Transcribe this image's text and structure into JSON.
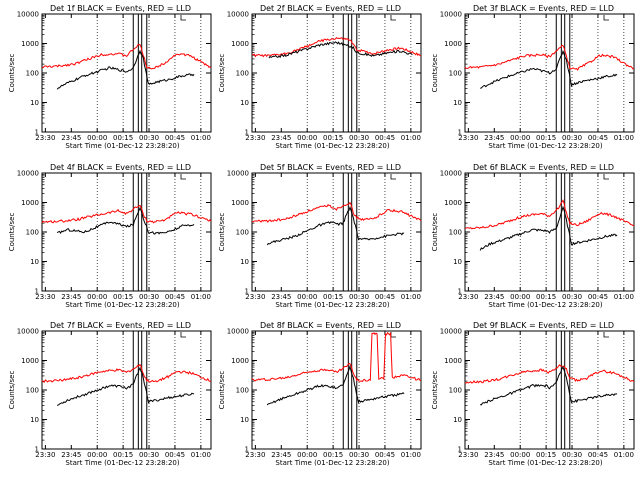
{
  "chart_data": [
    {
      "type": "line",
      "title": "Det 1f BLACK = Events, RED = LLD",
      "ylabel": "Counts/sec",
      "xlabel": "Start Time (01-Dec-12 23:28:20)",
      "x_ticks": [
        "23:30",
        "23:45",
        "00:00",
        "00:15",
        "00:30",
        "00:45",
        "01:00"
      ],
      "y_ticks": [
        "1",
        "10",
        "100",
        "1000",
        "10000"
      ],
      "y_scale": "log",
      "ylim": [
        1,
        10000
      ],
      "xlim": [
        0,
        100
      ],
      "grid": "dotted vertical lines at 00:00, 00:15, 00:30, 00:45, 01:00",
      "vlines": [
        54,
        57,
        59,
        62
      ],
      "series": [
        {
          "color": "#ff0000",
          "x": [
            0,
            10,
            20,
            35,
            45,
            50,
            56,
            58,
            60,
            62,
            66,
            72,
            80,
            88,
            95,
            100
          ],
          "y": [
            160,
            170,
            210,
            420,
            450,
            380,
            800,
            900,
            400,
            160,
            140,
            210,
            450,
            380,
            220,
            150
          ]
        },
        {
          "color": "#000000",
          "x": [
            9,
            15,
            25,
            40,
            48,
            50,
            54,
            56,
            58,
            60,
            63,
            68,
            75,
            83,
            90
          ],
          "y": [
            30,
            45,
            80,
            150,
            120,
            110,
            150,
            300,
            600,
            300,
            40,
            50,
            60,
            80,
            90
          ]
        }
      ]
    },
    {
      "type": "line",
      "title": "Det 2f BLACK = Events, RED = LLD",
      "ylabel": "Counts/sec",
      "xlabel": "Start Time (01-Dec-12 23:28:20)",
      "x_ticks": [
        "23:30",
        "23:45",
        "00:00",
        "00:15",
        "00:30",
        "00:45",
        "01:00"
      ],
      "y_ticks": [
        "1",
        "10",
        "100",
        "1000",
        "10000"
      ],
      "y_scale": "log",
      "ylim": [
        1,
        10000
      ],
      "xlim": [
        0,
        100
      ],
      "grid": "dotted vertical lines at 00:00, 00:15, 00:30, 00:45, 01:00",
      "vlines": [
        54,
        57,
        59,
        62
      ],
      "series": [
        {
          "color": "#ff0000",
          "x": [
            0,
            10,
            20,
            30,
            40,
            50,
            55,
            58,
            60,
            62,
            66,
            72,
            80,
            88,
            95,
            100
          ],
          "y": [
            400,
            380,
            450,
            700,
            1200,
            1500,
            1400,
            1300,
            900,
            600,
            550,
            450,
            600,
            700,
            500,
            380
          ]
        },
        {
          "color": "#000000",
          "x": [
            10,
            20,
            30,
            40,
            50,
            55,
            58,
            60,
            62,
            66,
            72,
            80,
            88,
            95
          ],
          "y": [
            330,
            400,
            600,
            900,
            1100,
            900,
            800,
            700,
            500,
            450,
            380,
            480,
            560,
            420
          ]
        }
      ]
    },
    {
      "type": "line",
      "title": "Det 3f BLACK = Events, RED = LLD",
      "ylabel": "Counts/sec",
      "xlabel": "Start Time (01-Dec-12 23:28:20)",
      "x_ticks": [
        "23:30",
        "23:45",
        "00:00",
        "00:15",
        "00:30",
        "00:45",
        "01:00"
      ],
      "y_ticks": [
        "1",
        "10",
        "100",
        "1000",
        "10000"
      ],
      "y_scale": "log",
      "ylim": [
        1,
        10000
      ],
      "xlim": [
        0,
        100
      ],
      "grid": "dotted vertical lines at 00:00, 00:15, 00:30, 00:45, 01:00",
      "vlines": [
        54,
        57,
        59,
        62
      ],
      "series": [
        {
          "color": "#ff0000",
          "x": [
            0,
            10,
            20,
            35,
            45,
            50,
            56,
            58,
            60,
            62,
            66,
            72,
            80,
            88,
            95,
            100
          ],
          "y": [
            150,
            160,
            200,
            380,
            420,
            360,
            700,
            850,
            380,
            150,
            130,
            200,
            400,
            350,
            200,
            140
          ]
        },
        {
          "color": "#000000",
          "x": [
            9,
            15,
            25,
            40,
            48,
            50,
            54,
            56,
            58,
            60,
            63,
            68,
            75,
            83,
            90
          ],
          "y": [
            30,
            45,
            75,
            140,
            110,
            100,
            140,
            280,
            550,
            280,
            40,
            50,
            60,
            75,
            85
          ]
        }
      ]
    },
    {
      "type": "line",
      "title": "Det 4f BLACK = Events, RED = LLD",
      "ylabel": "Counts/sec",
      "xlabel": "Start Time (01-Dec-12 23:28:20)",
      "x_ticks": [
        "23:30",
        "23:45",
        "00:00",
        "00:15",
        "00:30",
        "00:45",
        "01:00"
      ],
      "y_ticks": [
        "1",
        "10",
        "100",
        "1000",
        "10000"
      ],
      "y_scale": "log",
      "ylim": [
        1,
        10000
      ],
      "xlim": [
        0,
        100
      ],
      "grid": "dotted vertical lines at 00:00, 00:15, 00:30, 00:45, 01:00",
      "vlines": [
        54,
        57,
        59,
        62
      ],
      "series": [
        {
          "color": "#ff0000",
          "x": [
            0,
            10,
            20,
            35,
            45,
            50,
            56,
            58,
            60,
            62,
            66,
            72,
            80,
            88,
            95,
            100
          ],
          "y": [
            220,
            230,
            260,
            400,
            520,
            420,
            700,
            800,
            400,
            240,
            220,
            250,
            450,
            400,
            300,
            230
          ]
        },
        {
          "color": "#000000",
          "x": [
            9,
            15,
            25,
            40,
            48,
            50,
            54,
            56,
            58,
            60,
            63,
            68,
            75,
            83,
            90
          ],
          "y": [
            90,
            120,
            100,
            220,
            170,
            150,
            180,
            350,
            700,
            300,
            100,
            90,
            100,
            160,
            180
          ]
        }
      ]
    },
    {
      "type": "line",
      "title": "Det 5f BLACK = Events, RED = LLD",
      "ylabel": "Counts/sec",
      "xlabel": "Start Time (01-Dec-12 23:28:20)",
      "x_ticks": [
        "23:30",
        "23:45",
        "00:00",
        "00:15",
        "00:30",
        "00:45",
        "01:00"
      ],
      "y_ticks": [
        "1",
        "10",
        "100",
        "1000",
        "10000"
      ],
      "y_scale": "log",
      "ylim": [
        1,
        10000
      ],
      "xlim": [
        0,
        100
      ],
      "grid": "dotted vertical lines at 00:00, 00:15, 00:30, 00:45, 01:00",
      "vlines": [
        54,
        57,
        59,
        62
      ],
      "series": [
        {
          "color": "#ff0000",
          "x": [
            0,
            10,
            20,
            35,
            45,
            50,
            56,
            58,
            60,
            62,
            66,
            72,
            80,
            88,
            95,
            100
          ],
          "y": [
            230,
            240,
            270,
            550,
            800,
            600,
            900,
            1000,
            450,
            300,
            260,
            280,
            550,
            500,
            330,
            240
          ]
        },
        {
          "color": "#000000",
          "x": [
            9,
            15,
            25,
            40,
            48,
            50,
            54,
            56,
            58,
            60,
            63,
            68,
            75,
            83,
            90
          ],
          "y": [
            40,
            50,
            70,
            170,
            220,
            180,
            200,
            400,
            650,
            300,
            60,
            55,
            65,
            80,
            90
          ]
        }
      ]
    },
    {
      "type": "line",
      "title": "Det 6f BLACK = Events, RED = LLD",
      "ylabel": "Counts/sec",
      "xlabel": "Start Time (01-Dec-12 23:28:20)",
      "x_ticks": [
        "23:30",
        "23:45",
        "00:00",
        "00:15",
        "00:30",
        "00:45",
        "01:00"
      ],
      "y_ticks": [
        "1",
        "10",
        "100",
        "1000",
        "10000"
      ],
      "y_scale": "log",
      "ylim": [
        1,
        10000
      ],
      "xlim": [
        0,
        100
      ],
      "grid": "dotted vertical lines at 00:00, 00:15, 00:30, 00:45, 01:00",
      "vlines": [
        54,
        57,
        59,
        62
      ],
      "series": [
        {
          "color": "#ff0000",
          "x": [
            0,
            10,
            20,
            35,
            45,
            50,
            56,
            58,
            60,
            62,
            66,
            72,
            80,
            88,
            95,
            100
          ],
          "y": [
            130,
            140,
            180,
            350,
            420,
            350,
            700,
            1200,
            450,
            200,
            170,
            230,
            450,
            350,
            220,
            160
          ]
        },
        {
          "color": "#000000",
          "x": [
            9,
            15,
            25,
            40,
            48,
            50,
            54,
            56,
            58,
            60,
            63,
            68,
            75,
            83,
            90
          ],
          "y": [
            25,
            40,
            60,
            120,
            110,
            100,
            130,
            300,
            700,
            250,
            40,
            45,
            55,
            70,
            80
          ]
        }
      ]
    },
    {
      "type": "line",
      "title": "Det 7f BLACK = Events, RED = LLD",
      "ylabel": "Counts/sec",
      "xlabel": "Start Time (01-Dec-12 23:28:20)",
      "x_ticks": [
        "23:30",
        "23:45",
        "00:00",
        "00:15",
        "00:30",
        "00:45",
        "01:00"
      ],
      "y_ticks": [
        "1",
        "10",
        "100",
        "1000",
        "10000"
      ],
      "y_scale": "log",
      "ylim": [
        1,
        10000
      ],
      "xlim": [
        0,
        100
      ],
      "grid": "dotted vertical lines at 00:00, 00:15, 00:30, 00:45, 01:00",
      "vlines": [
        54,
        57,
        59,
        62
      ],
      "series": [
        {
          "color": "#ff0000",
          "x": [
            0,
            10,
            20,
            35,
            45,
            50,
            56,
            58,
            60,
            62,
            66,
            72,
            80,
            88,
            95,
            100
          ],
          "y": [
            200,
            210,
            250,
            420,
            480,
            400,
            600,
            750,
            350,
            210,
            190,
            240,
            420,
            380,
            260,
            200
          ]
        },
        {
          "color": "#000000",
          "x": [
            9,
            15,
            25,
            40,
            48,
            50,
            54,
            56,
            58,
            60,
            63,
            68,
            75,
            83,
            90
          ],
          "y": [
            30,
            45,
            70,
            140,
            130,
            110,
            160,
            300,
            600,
            250,
            40,
            45,
            55,
            65,
            75
          ]
        }
      ]
    },
    {
      "type": "line",
      "title": "Det 8f BLACK = Events, RED = LLD",
      "ylabel": "Counts/sec",
      "xlabel": "Start Time (01-Dec-12 23:28:20)",
      "x_ticks": [
        "23:30",
        "23:45",
        "00:00",
        "00:15",
        "00:30",
        "00:45",
        "01:00"
      ],
      "y_ticks": [
        "1",
        "10",
        "100",
        "1000",
        "10000"
      ],
      "y_scale": "log",
      "ylim": [
        1,
        10000
      ],
      "xlim": [
        0,
        100
      ],
      "grid": "dotted vertical lines at 00:00, 00:15, 00:30, 00:45, 01:00",
      "vlines": [
        54,
        57,
        59,
        62
      ],
      "series": [
        {
          "color": "#ff0000",
          "x": [
            0,
            10,
            20,
            35,
            45,
            50,
            56,
            58,
            60,
            62,
            66,
            70,
            71,
            74,
            75,
            78,
            79,
            82,
            83,
            86,
            90,
            95,
            100
          ],
          "y": [
            220,
            230,
            260,
            440,
            500,
            400,
            650,
            800,
            380,
            220,
            210,
            230,
            8000,
            8000,
            250,
            240,
            8000,
            8000,
            260,
            300,
            320,
            260,
            210
          ]
        },
        {
          "color": "#000000",
          "x": [
            9,
            15,
            25,
            40,
            48,
            50,
            54,
            56,
            58,
            60,
            63,
            68,
            75,
            83,
            90
          ],
          "y": [
            30,
            45,
            70,
            140,
            130,
            110,
            160,
            300,
            600,
            250,
            40,
            45,
            55,
            65,
            75
          ]
        }
      ]
    },
    {
      "type": "line",
      "title": "Det 9f BLACK = Events, RED = LLD",
      "ylabel": "Counts/sec",
      "xlabel": "Start Time (01-Dec-12 23:28:20)",
      "x_ticks": [
        "23:30",
        "23:45",
        "00:00",
        "00:15",
        "00:30",
        "00:45",
        "01:00"
      ],
      "y_ticks": [
        "1",
        "10",
        "100",
        "1000",
        "10000"
      ],
      "y_scale": "log",
      "ylim": [
        1,
        10000
      ],
      "xlim": [
        0,
        100
      ],
      "grid": "dotted vertical lines at 00:00, 00:15, 00:30, 00:45, 01:00",
      "vlines": [
        54,
        57,
        59,
        62
      ],
      "series": [
        {
          "color": "#ff0000",
          "x": [
            0,
            10,
            20,
            35,
            45,
            50,
            56,
            58,
            60,
            62,
            66,
            72,
            80,
            88,
            95,
            100
          ],
          "y": [
            180,
            190,
            230,
            420,
            480,
            400,
            650,
            650,
            500,
            250,
            210,
            250,
            450,
            380,
            260,
            190
          ]
        },
        {
          "color": "#000000",
          "x": [
            9,
            15,
            25,
            40,
            48,
            50,
            54,
            56,
            58,
            60,
            63,
            68,
            75,
            83,
            90
          ],
          "y": [
            30,
            45,
            70,
            140,
            140,
            120,
            170,
            350,
            600,
            280,
            40,
            45,
            55,
            65,
            75
          ]
        }
      ]
    }
  ]
}
